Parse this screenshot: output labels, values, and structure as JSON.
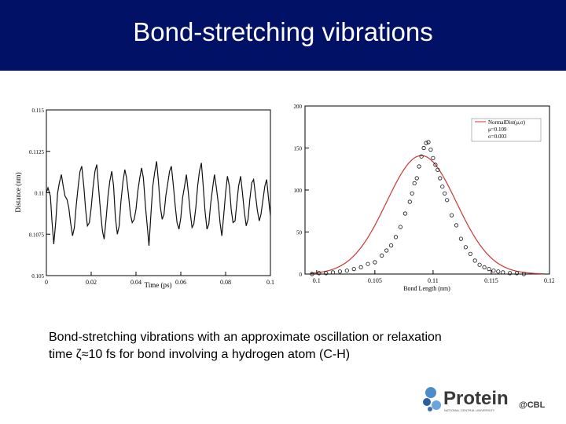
{
  "slide": {
    "title": "Bond-stretching vibrations",
    "caption_line1": "Bond-stretching vibrations with an approximate oscillation or relaxation",
    "caption_line2": "time ζ≈10 fs for bond involving a hydrogen atom (C-H)",
    "header_color": "#001166"
  },
  "logo": {
    "word": "Protein",
    "suffix": "@CBL",
    "subtitle": "NATIONAL CENTRAL UNIVERSITY"
  },
  "chart_data": [
    {
      "type": "line",
      "xlabel": "Time (ps)",
      "ylabel": "Distance (nm)",
      "xlim": [
        0,
        0.1
      ],
      "ylim": [
        0.105,
        0.115
      ],
      "xticks": [
        "0",
        "0.02",
        "0.04",
        "0.06",
        "0.08",
        "0.1"
      ],
      "yticks": [
        "0.105",
        "0.1075",
        "0.11",
        "0.1125",
        "0.115"
      ],
      "series": [
        {
          "values": [
            [
              0.0,
              0.11
            ],
            [
              0.0007,
              0.1103
            ],
            [
              0.0018,
              0.1098
            ],
            [
              0.0025,
              0.1083
            ],
            [
              0.0033,
              0.1069
            ],
            [
              0.0042,
              0.1083
            ],
            [
              0.005,
              0.11
            ],
            [
              0.0058,
              0.1106
            ],
            [
              0.0067,
              0.1111
            ],
            [
              0.0075,
              0.1104
            ],
            [
              0.0083,
              0.1098
            ],
            [
              0.0092,
              0.1096
            ],
            [
              0.01,
              0.1091
            ],
            [
              0.0108,
              0.1082
            ],
            [
              0.0117,
              0.1074
            ],
            [
              0.0125,
              0.1079
            ],
            [
              0.0133,
              0.1092
            ],
            [
              0.0142,
              0.1104
            ],
            [
              0.015,
              0.1113
            ],
            [
              0.0158,
              0.1116
            ],
            [
              0.0167,
              0.1104
            ],
            [
              0.0175,
              0.109
            ],
            [
              0.0183,
              0.108
            ],
            [
              0.0192,
              0.1082
            ],
            [
              0.02,
              0.1091
            ],
            [
              0.0208,
              0.1103
            ],
            [
              0.0217,
              0.1113
            ],
            [
              0.0225,
              0.1117
            ],
            [
              0.0233,
              0.1103
            ],
            [
              0.0242,
              0.1088
            ],
            [
              0.025,
              0.1077
            ],
            [
              0.0258,
              0.1072
            ],
            [
              0.0267,
              0.1085
            ],
            [
              0.0275,
              0.1098
            ],
            [
              0.0283,
              0.1107
            ],
            [
              0.0292,
              0.1113
            ],
            [
              0.03,
              0.1104
            ],
            [
              0.0308,
              0.1085
            ],
            [
              0.0317,
              0.1075
            ],
            [
              0.0325,
              0.108
            ],
            [
              0.0333,
              0.1095
            ],
            [
              0.0342,
              0.1107
            ],
            [
              0.035,
              0.1114
            ],
            [
              0.0358,
              0.1109
            ],
            [
              0.0367,
              0.1098
            ],
            [
              0.0375,
              0.1087
            ],
            [
              0.0383,
              0.1082
            ],
            [
              0.0392,
              0.1084
            ],
            [
              0.04,
              0.109
            ],
            [
              0.0408,
              0.1101
            ],
            [
              0.0417,
              0.1109
            ],
            [
              0.0425,
              0.1115
            ],
            [
              0.0433,
              0.1109
            ],
            [
              0.0442,
              0.1092
            ],
            [
              0.045,
              0.108
            ],
            [
              0.0458,
              0.1068
            ],
            [
              0.0467,
              0.1088
            ],
            [
              0.0475,
              0.1104
            ],
            [
              0.0483,
              0.1112
            ],
            [
              0.0492,
              0.1119
            ],
            [
              0.05,
              0.1107
            ],
            [
              0.0508,
              0.1092
            ],
            [
              0.0517,
              0.1084
            ],
            [
              0.0525,
              0.1087
            ],
            [
              0.0533,
              0.1098
            ],
            [
              0.0542,
              0.1106
            ],
            [
              0.055,
              0.1113
            ],
            [
              0.0558,
              0.1116
            ],
            [
              0.0567,
              0.1104
            ],
            [
              0.0575,
              0.1092
            ],
            [
              0.0583,
              0.1082
            ],
            [
              0.0592,
              0.1078
            ],
            [
              0.06,
              0.1085
            ],
            [
              0.0608,
              0.1097
            ],
            [
              0.0617,
              0.1104
            ],
            [
              0.0625,
              0.1111
            ],
            [
              0.0633,
              0.1101
            ],
            [
              0.0642,
              0.1088
            ],
            [
              0.065,
              0.1079
            ],
            [
              0.0658,
              0.1081
            ],
            [
              0.0667,
              0.1091
            ],
            [
              0.0675,
              0.1104
            ],
            [
              0.0683,
              0.1113
            ],
            [
              0.0692,
              0.1118
            ],
            [
              0.07,
              0.1104
            ],
            [
              0.0708,
              0.1089
            ],
            [
              0.0717,
              0.1078
            ],
            [
              0.0725,
              0.1081
            ],
            [
              0.0733,
              0.1093
            ],
            [
              0.0742,
              0.1103
            ],
            [
              0.075,
              0.1111
            ],
            [
              0.0758,
              0.1104
            ],
            [
              0.0767,
              0.1094
            ],
            [
              0.0775,
              0.1082
            ],
            [
              0.0783,
              0.1074
            ],
            [
              0.0792,
              0.1087
            ],
            [
              0.08,
              0.11
            ],
            [
              0.0808,
              0.111
            ],
            [
              0.0817,
              0.1104
            ],
            [
              0.0825,
              0.109
            ],
            [
              0.0833,
              0.1082
            ],
            [
              0.0842,
              0.1083
            ],
            [
              0.085,
              0.1094
            ],
            [
              0.0858,
              0.1104
            ],
            [
              0.0867,
              0.111
            ],
            [
              0.0875,
              0.11
            ],
            [
              0.0883,
              0.1089
            ],
            [
              0.0892,
              0.108
            ],
            [
              0.09,
              0.1084
            ],
            [
              0.0908,
              0.1096
            ],
            [
              0.0917,
              0.1106
            ],
            [
              0.0925,
              0.1108
            ],
            [
              0.0933,
              0.1099
            ],
            [
              0.0942,
              0.1089
            ],
            [
              0.095,
              0.1083
            ],
            [
              0.0958,
              0.1087
            ],
            [
              0.0967,
              0.1096
            ],
            [
              0.0975,
              0.1104
            ],
            [
              0.0983,
              0.1108
            ],
            [
              0.0992,
              0.1096
            ],
            [
              0.1,
              0.1086
            ]
          ]
        }
      ]
    },
    {
      "type": "scatter",
      "xlabel": "Bond Length (nm)",
      "xlim": [
        0.099,
        0.12
      ],
      "ylim": [
        0,
        200
      ],
      "xticks": [
        "0.1",
        "0.105",
        "0.11",
        "0.115",
        "0.12"
      ],
      "yticks": [
        "0",
        "50",
        "100",
        "150",
        "200"
      ],
      "legend": [
        "NormalDist(μ,σ)",
        "μ=0.109",
        "σ=0.003"
      ],
      "legend_position": "top-right",
      "fit": {
        "mu": 0.109,
        "sigma": 0.003,
        "peak": 141
      },
      "points": [
        [
          0.0996,
          0
        ],
        [
          0.1002,
          1
        ],
        [
          0.1008,
          1
        ],
        [
          0.1014,
          2
        ],
        [
          0.102,
          3
        ],
        [
          0.1026,
          4
        ],
        [
          0.1032,
          6
        ],
        [
          0.1038,
          8
        ],
        [
          0.1044,
          12
        ],
        [
          0.105,
          14
        ],
        [
          0.1056,
          22
        ],
        [
          0.106,
          28
        ],
        [
          0.1064,
          34
        ],
        [
          0.1068,
          44
        ],
        [
          0.1072,
          56
        ],
        [
          0.1076,
          72
        ],
        [
          0.108,
          86
        ],
        [
          0.1082,
          96
        ],
        [
          0.1084,
          108
        ],
        [
          0.1086,
          114
        ],
        [
          0.1088,
          128
        ],
        [
          0.109,
          140
        ],
        [
          0.1092,
          150
        ],
        [
          0.1094,
          156
        ],
        [
          0.1096,
          157
        ],
        [
          0.1098,
          148
        ],
        [
          0.11,
          138
        ],
        [
          0.1102,
          130
        ],
        [
          0.1104,
          124
        ],
        [
          0.1106,
          114
        ],
        [
          0.1108,
          104
        ],
        [
          0.111,
          96
        ],
        [
          0.1112,
          88
        ],
        [
          0.1116,
          70
        ],
        [
          0.112,
          58
        ],
        [
          0.1124,
          42
        ],
        [
          0.1128,
          32
        ],
        [
          0.1132,
          24
        ],
        [
          0.1136,
          16
        ],
        [
          0.114,
          11
        ],
        [
          0.1144,
          8
        ],
        [
          0.1148,
          6
        ],
        [
          0.1152,
          4
        ],
        [
          0.1156,
          3
        ],
        [
          0.116,
          2
        ],
        [
          0.1166,
          1
        ],
        [
          0.1172,
          1
        ],
        [
          0.1178,
          0
        ]
      ]
    }
  ]
}
